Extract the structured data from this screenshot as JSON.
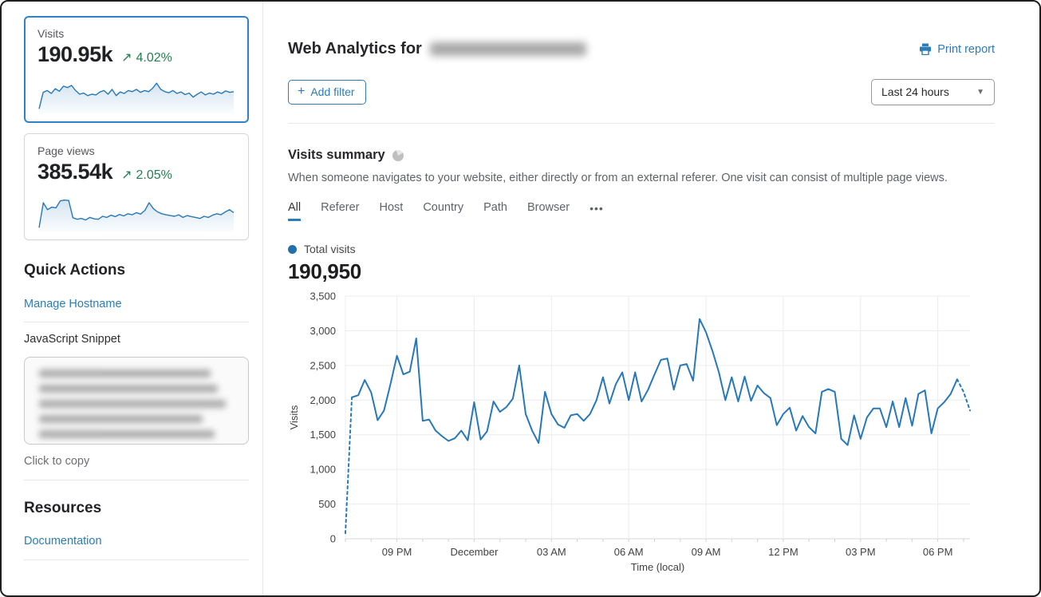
{
  "colors": {
    "accent_blue": "#2f7bbc",
    "link_blue": "#2c7cb8",
    "line_blue": "#2878b8",
    "legend_dot_blue": "#2270ab",
    "delta_green": "#267d51",
    "selected_card_border": "#3082c6",
    "grid_gray": "#ececec"
  },
  "sidebar": {
    "visits_card": {
      "label": "Visits",
      "value": "190.95k",
      "delta_arrow": "↗",
      "delta": "4.02%",
      "spark": [
        10,
        55,
        60,
        52,
        65,
        58,
        72,
        68,
        74,
        60,
        50,
        53,
        46,
        50,
        48,
        56,
        60,
        50,
        63,
        46,
        56,
        52,
        60,
        57,
        63,
        55,
        60,
        57,
        66,
        80,
        63,
        57,
        54,
        60,
        52,
        56,
        49,
        53,
        42,
        50,
        56,
        48,
        53,
        50,
        56,
        52,
        59,
        55,
        57
      ]
    },
    "pageviews_card": {
      "label": "Page views",
      "value": "385.54k",
      "delta_arrow": "↗",
      "delta": "2.05%",
      "spark": [
        6,
        74,
        55,
        62,
        60,
        79,
        81,
        80,
        33,
        29,
        31,
        27,
        34,
        30,
        29,
        37,
        34,
        40,
        36,
        42,
        38,
        44,
        41,
        47,
        43,
        53,
        74,
        58,
        49,
        44,
        41,
        39,
        37,
        41,
        34,
        39,
        36,
        34,
        31,
        37,
        34,
        40,
        44,
        41,
        49,
        55,
        47
      ]
    },
    "quick_actions": {
      "title": "Quick Actions",
      "manage_link": "Manage Hostname",
      "snippet_label": "JavaScript Snippet",
      "copy_hint": "Click to copy"
    },
    "resources": {
      "title": "Resources",
      "doc_link": "Documentation"
    }
  },
  "header": {
    "title": "Web Analytics for",
    "print_label": "Print report",
    "add_filter": {
      "icon": "+",
      "label": "Add filter"
    },
    "range_value": "Last 24 hours",
    "caret": "▼"
  },
  "summary": {
    "title": "Visits summary",
    "description": "When someone navigates to your website, either directly or from an external referer. One visit can consist of multiple page views.",
    "tabs": [
      "All",
      "Referer",
      "Host",
      "Country",
      "Path",
      "Browser"
    ],
    "active_tab": "All",
    "overflow_label": "•••",
    "legend_label": "Total visits",
    "total_value": "190,950"
  },
  "chart_data": {
    "type": "line",
    "title": "Visits summary — Total visits",
    "xlabel": "Time (local)",
    "ylabel": "Visits",
    "ylim": [
      0,
      3500
    ],
    "grid": true,
    "legend": [
      "Total visits"
    ],
    "yticks": [
      {
        "value": 0,
        "label": "0"
      },
      {
        "value": 500,
        "label": "500"
      },
      {
        "value": 1000,
        "label": "1,000"
      },
      {
        "value": 1500,
        "label": "1,500"
      },
      {
        "value": 2000,
        "label": "2,000"
      },
      {
        "value": 2500,
        "label": "2,500"
      },
      {
        "value": 3000,
        "label": "3,000"
      },
      {
        "value": 3500,
        "label": "3,500"
      }
    ],
    "xticks": [
      {
        "label": "09 PM",
        "index": 8
      },
      {
        "label": "December",
        "index": 20
      },
      {
        "label": "03 AM",
        "index": 32
      },
      {
        "label": "06 AM",
        "index": 44
      },
      {
        "label": "09 AM",
        "index": 56
      },
      {
        "label": "12 PM",
        "index": 68
      },
      {
        "label": "03 PM",
        "index": 80
      },
      {
        "label": "06 PM",
        "index": 92
      }
    ],
    "minor_tick_every": 4,
    "dashed_head_points": 1,
    "dashed_tail_points": 2,
    "values": [
      80,
      2040,
      2070,
      2290,
      2110,
      1710,
      1850,
      2230,
      2640,
      2370,
      2410,
      2890,
      1700,
      1720,
      1560,
      1480,
      1410,
      1450,
      1560,
      1420,
      1970,
      1430,
      1550,
      1980,
      1830,
      1900,
      2020,
      2500,
      1800,
      1560,
      1380,
      2120,
      1800,
      1650,
      1600,
      1780,
      1800,
      1700,
      1800,
      2000,
      2330,
      1950,
      2230,
      2400,
      2000,
      2400,
      1980,
      2150,
      2370,
      2580,
      2600,
      2150,
      2500,
      2520,
      2280,
      3170,
      2980,
      2710,
      2400,
      2000,
      2330,
      1980,
      2340,
      1990,
      2210,
      2100,
      2030,
      1640,
      1800,
      1890,
      1560,
      1770,
      1610,
      1520,
      2120,
      2160,
      2120,
      1440,
      1350,
      1780,
      1440,
      1750,
      1880,
      1880,
      1610,
      1980,
      1610,
      2030,
      1630,
      2090,
      2140,
      1520,
      1880,
      1970,
      2090,
      2300,
      2120,
      1850
    ]
  }
}
